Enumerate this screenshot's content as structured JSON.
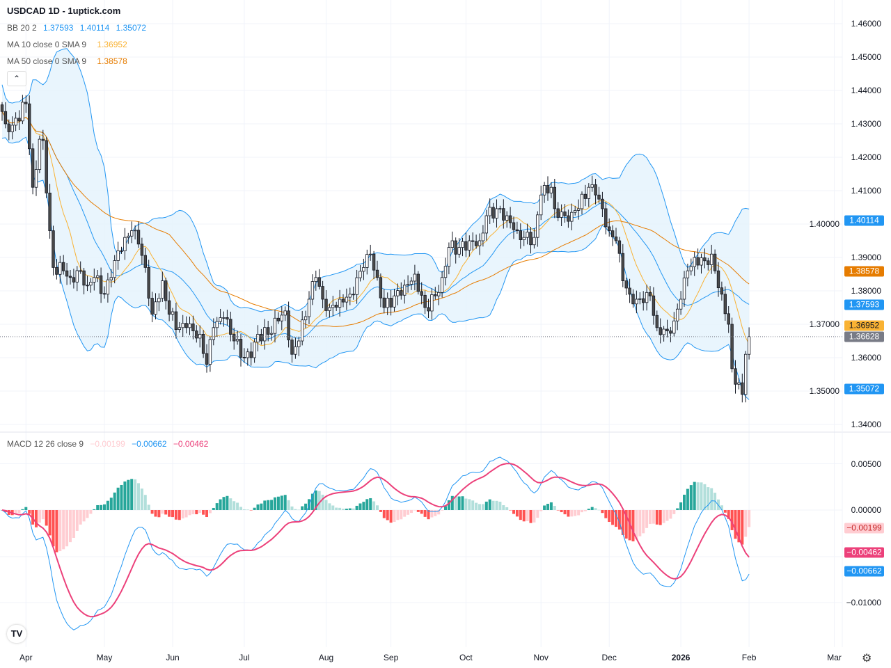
{
  "header": {
    "title": "USDCAD 1D - 1uptick.com"
  },
  "legend": {
    "bb": {
      "name": "BB 20 2",
      "basis": "1.37593",
      "upper": "1.40114",
      "lower": "1.35072"
    },
    "ma10": {
      "name": "MA 10 close 0 SMA 9",
      "value": "1.36952"
    },
    "ma50": {
      "name": "MA 50 close 0 SMA 9",
      "value": "1.38578"
    },
    "macd": {
      "name": "MACD 12 26 close 9",
      "hist": "−0.00199",
      "macd": "−0.00662",
      "signal": "−0.00462"
    }
  },
  "price_axis": [
    "1.46000",
    "1.45000",
    "1.44000",
    "1.43000",
    "1.42000",
    "1.41000",
    "1.40000",
    "1.39000",
    "1.38000",
    "1.37000",
    "1.36000",
    "1.35000",
    "1.34000"
  ],
  "price_badges": [
    {
      "value": "1.40114",
      "price": 1.40114,
      "color": "#2196f3"
    },
    {
      "value": "1.38578",
      "price": 1.38578,
      "color": "#e67c00"
    },
    {
      "value": "1.37593",
      "price": 1.37593,
      "color": "#2196f3"
    },
    {
      "value": "1.36952",
      "price": 1.36952,
      "color": "#f9b233",
      "text": "#131722"
    },
    {
      "value": "1.36628",
      "price": 1.36628,
      "color": "#787b86"
    },
    {
      "value": "1.35072",
      "price": 1.35072,
      "color": "#2196f3"
    }
  ],
  "macd_axis": [
    {
      "label": "0.00500",
      "v": 0.005
    },
    {
      "label": "0.00000",
      "v": 0
    },
    {
      "label": "−0.01000",
      "v": -0.01
    }
  ],
  "macd_badges": [
    {
      "value": "−0.00199",
      "v": -0.00199,
      "color": "#ffcdd2",
      "text": "#c62828"
    },
    {
      "value": "−0.00462",
      "v": -0.00462,
      "color": "#ec407a"
    },
    {
      "value": "−0.00662",
      "v": -0.00662,
      "color": "#2196f3"
    }
  ],
  "time_axis": [
    {
      "label": "Apr",
      "day": 7
    },
    {
      "label": "May",
      "day": 30
    },
    {
      "label": "Jun",
      "day": 50
    },
    {
      "label": "Jul",
      "day": 71
    },
    {
      "label": "Aug",
      "day": 95
    },
    {
      "label": "Sep",
      "day": 114
    },
    {
      "label": "Oct",
      "day": 136
    },
    {
      "label": "Nov",
      "day": 158
    },
    {
      "label": "Dec",
      "day": 178
    },
    {
      "label": "2026",
      "day": 199,
      "bold": true
    },
    {
      "label": "Feb",
      "day": 219
    },
    {
      "label": "Mar",
      "day": 244
    }
  ],
  "colors": {
    "bb": "#2196f3",
    "bbFill": "#e3f2fd",
    "ma10": "#f9b233",
    "ma50": "#e67c00",
    "macd": "#2196f3",
    "signal": "#ec407a",
    "histUpStrong": "#26a69a",
    "histUpWeak": "#b2dfdb",
    "histDnStrong": "#ff5252",
    "histDnWeak": "#ffcdd2"
  },
  "chart_data": {
    "type": "candlestick",
    "symbol": "USDCAD",
    "interval": "1D",
    "ylim": [
      1.34,
      1.46
    ],
    "last_close": 1.36628,
    "close_keypoints": [
      [
        0,
        1.4337
      ],
      [
        1,
        1.43
      ],
      [
        3,
        1.4296
      ],
      [
        7,
        1.436
      ],
      [
        9,
        1.411
      ],
      [
        11,
        1.4254
      ],
      [
        12,
        1.425
      ],
      [
        14,
        1.398
      ],
      [
        15,
        1.387
      ],
      [
        18,
        1.386
      ],
      [
        20,
        1.384
      ],
      [
        23,
        1.386
      ],
      [
        25,
        1.3817
      ],
      [
        27,
        1.384
      ],
      [
        30,
        1.379
      ],
      [
        32,
        1.384
      ],
      [
        34,
        1.392
      ],
      [
        36,
        1.396
      ],
      [
        38,
        1.398
      ],
      [
        40,
        1.394
      ],
      [
        42,
        1.387
      ],
      [
        44,
        1.373
      ],
      [
        47,
        1.383
      ],
      [
        49,
        1.373
      ],
      [
        52,
        1.369
      ],
      [
        54,
        1.369
      ],
      [
        58,
        1.367
      ],
      [
        60,
        1.358
      ],
      [
        62,
        1.369
      ],
      [
        65,
        1.372
      ],
      [
        68,
        1.365
      ],
      [
        71,
        1.36
      ],
      [
        73,
        1.36
      ],
      [
        75,
        1.367
      ],
      [
        78,
        1.367
      ],
      [
        81,
        1.371
      ],
      [
        83,
        1.374
      ],
      [
        85,
        1.361
      ],
      [
        87,
        1.365
      ],
      [
        90,
        1.3775
      ],
      [
        92,
        1.384
      ],
      [
        94,
        1.3775
      ],
      [
        96,
        1.375
      ],
      [
        99,
        1.3775
      ],
      [
        102,
        1.379
      ],
      [
        106,
        1.387
      ],
      [
        108,
        1.391
      ],
      [
        110,
        1.384
      ],
      [
        112,
        1.375
      ],
      [
        115,
        1.3785
      ],
      [
        118,
        1.3817
      ],
      [
        121,
        1.385
      ],
      [
        124,
        1.375
      ],
      [
        127,
        1.3785
      ],
      [
        129,
        1.384
      ],
      [
        131,
        1.393
      ],
      [
        134,
        1.393
      ],
      [
        137,
        1.395
      ],
      [
        140,
        1.395
      ],
      [
        142,
        1.4025
      ],
      [
        145,
        1.4046
      ],
      [
        148,
        1.4025
      ],
      [
        151,
        1.398
      ],
      [
        153,
        1.396
      ],
      [
        156,
        1.396
      ],
      [
        158,
        1.4087
      ],
      [
        161,
        1.411
      ],
      [
        162,
        1.4046
      ],
      [
        165,
        1.4025
      ],
      [
        167,
        1.4035
      ],
      [
        169,
        1.4046
      ],
      [
        172,
        1.411
      ],
      [
        174,
        1.4087
      ],
      [
        176,
        1.4046
      ],
      [
        178,
        1.398
      ],
      [
        180,
        1.395
      ],
      [
        182,
        1.383
      ],
      [
        184,
        1.379
      ],
      [
        186,
        1.3775
      ],
      [
        188,
        1.3765
      ],
      [
        190,
        1.3785
      ],
      [
        192,
        1.369
      ],
      [
        195,
        1.368
      ],
      [
        197,
        1.371
      ],
      [
        199,
        1.3775
      ],
      [
        201,
        1.386
      ],
      [
        203,
        1.39
      ],
      [
        206,
        1.389
      ],
      [
        208,
        1.391
      ],
      [
        209,
        1.386
      ],
      [
        211,
        1.379
      ],
      [
        213,
        1.37
      ],
      [
        214,
        1.3567
      ],
      [
        217,
        1.349
      ],
      [
        218,
        1.361
      ],
      [
        219,
        1.36628
      ]
    ],
    "indicators": [
      "BB 20 2",
      "MA 10",
      "MA 50",
      "MACD 12 26 9"
    ]
  }
}
